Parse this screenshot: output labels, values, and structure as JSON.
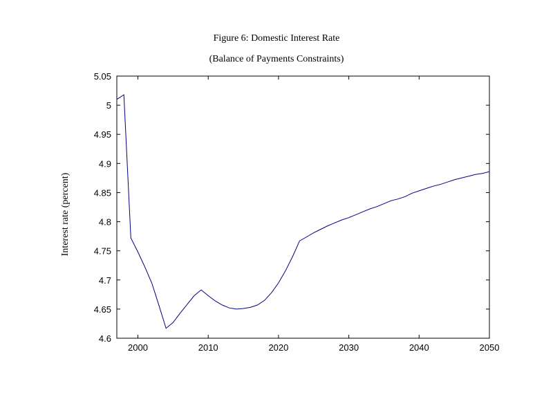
{
  "chart_data": {
    "type": "line",
    "title": "Figure 6: Domestic Interest Rate",
    "subtitle": "(Balance of Payments Constraints)",
    "xlabel": "",
    "ylabel": "Interest rate (percent)",
    "xlim": [
      1997,
      2050
    ],
    "ylim": [
      4.6,
      5.05
    ],
    "xticks": [
      "2000",
      "2010",
      "2020",
      "2030",
      "2040",
      "2050"
    ],
    "yticks": [
      "4.6",
      "4.65",
      "4.7",
      "4.75",
      "4.8",
      "4.85",
      "4.9",
      "4.95",
      "5",
      "5.05"
    ],
    "grid": false,
    "line_color": "#00007f",
    "series": [
      {
        "x": [
          1997,
          1998,
          1999,
          2000,
          2001,
          2002,
          2003,
          2004,
          2005,
          2006,
          2007,
          2008,
          2009,
          2010,
          2011,
          2012,
          2013,
          2014,
          2015,
          2016,
          2017,
          2018,
          2019,
          2020,
          2021,
          2022,
          2023,
          2024,
          2025,
          2026,
          2027,
          2028,
          2029,
          2030,
          2031,
          2032,
          2033,
          2034,
          2035,
          2036,
          2037,
          2038,
          2039,
          2040,
          2041,
          2042,
          2043,
          2044,
          2045,
          2046,
          2047,
          2048,
          2049,
          2050
        ],
        "values": [
          5.01,
          5.018,
          4.772,
          4.748,
          4.722,
          4.694,
          4.656,
          4.617,
          4.627,
          4.643,
          4.658,
          4.673,
          4.683,
          4.673,
          4.664,
          4.657,
          4.652,
          4.65,
          4.651,
          4.653,
          4.657,
          4.665,
          4.678,
          4.695,
          4.716,
          4.74,
          4.767,
          4.774,
          4.781,
          4.787,
          4.793,
          4.798,
          4.803,
          4.807,
          4.812,
          4.817,
          4.822,
          4.826,
          4.831,
          4.836,
          4.839,
          4.843,
          4.849,
          4.853,
          4.857,
          4.861,
          4.864,
          4.868,
          4.872,
          4.875,
          4.878,
          4.881,
          4.883,
          4.886
        ]
      }
    ]
  }
}
